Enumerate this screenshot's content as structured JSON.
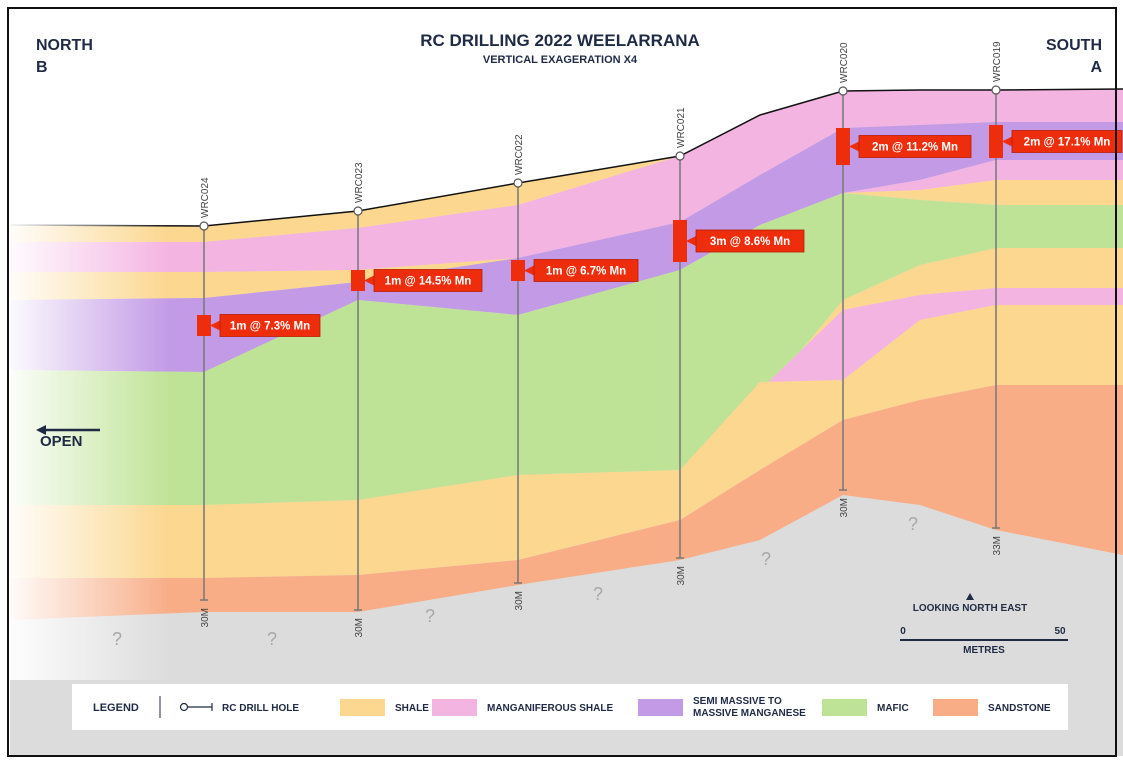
{
  "header": {
    "title": "RC DRILLING 2022 WEELARRANA",
    "subtitle": "VERTICAL EXAGERATION X4",
    "left_direction": "NORTH",
    "left_section": "B",
    "right_direction": "SOUTH",
    "right_section": "A"
  },
  "drill_holes": [
    {
      "name": "WRC024",
      "depth": "30M",
      "intercept": "1m @ 7.3% Mn"
    },
    {
      "name": "WRC023",
      "depth": "30M",
      "intercept": "1m @ 14.5% Mn"
    },
    {
      "name": "WRC022",
      "depth": "30M",
      "intercept": "1m @ 6.7% Mn"
    },
    {
      "name": "WRC021",
      "depth": "30M",
      "intercept": "3m @ 8.6% Mn"
    },
    {
      "name": "WRC020",
      "depth": "30M",
      "intercept": "2m @ 11.2% Mn"
    },
    {
      "name": "WRC019",
      "depth": "33M",
      "intercept": "2m @ 17.1% Mn"
    }
  ],
  "open_label": "OPEN",
  "unknown_markers": [
    "?",
    "?",
    "?",
    "?",
    "?",
    "?"
  ],
  "orientation": "LOOKING NORTH EAST",
  "scale": {
    "start": "0",
    "end": "50",
    "unit": "METRES"
  },
  "legend": {
    "title": "LEGEND",
    "items": [
      {
        "label": "RC DRILL HOLE"
      },
      {
        "label": "SHALE"
      },
      {
        "label": "MANGANIFEROUS SHALE"
      },
      {
        "label_lines": [
          "SEMI MASSIVE TO",
          "MASSIVE MANGANESE"
        ]
      },
      {
        "label": "MAFIC"
      },
      {
        "label": "SANDSTONE"
      }
    ]
  }
}
